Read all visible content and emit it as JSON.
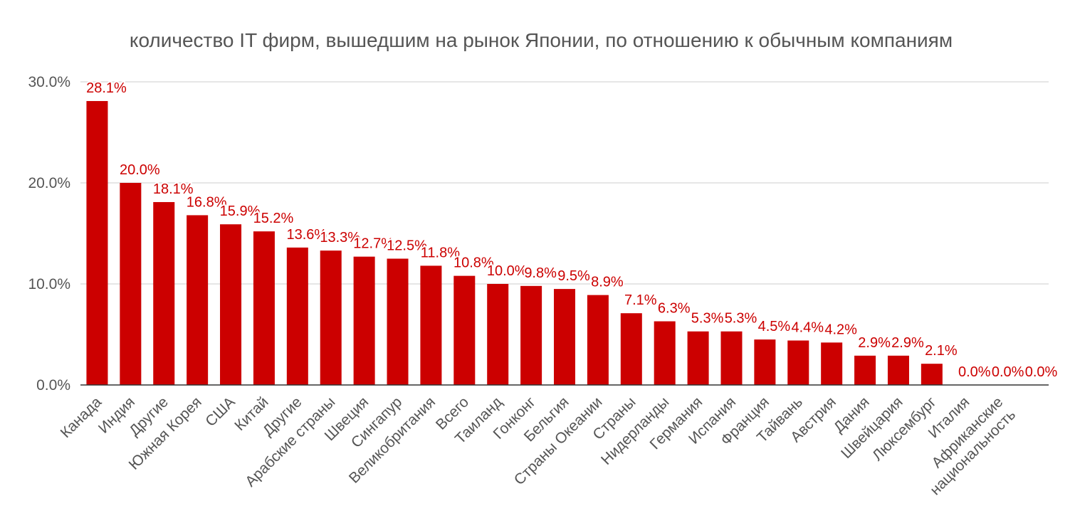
{
  "chart_data": {
    "type": "bar",
    "title": "количество IT фирм, вышедшим на рынок Японии, по отношению к обычным компаниям",
    "xlabel": "",
    "ylabel": "",
    "ylim": [
      0,
      30
    ],
    "yticks": [
      "0.0%",
      "10.0%",
      "20.0%",
      "30.0%"
    ],
    "grid": true,
    "legend": "none",
    "bar_color": "#cc0000",
    "label_color": "#cc0000",
    "categories": [
      "Канада",
      "Индия",
      "Другие",
      "Южная Корея",
      "США",
      "Китай",
      "Другие",
      "Арабские страны",
      "Швеция",
      "Сингапур",
      "Великобритания",
      "Всего",
      "Таиланд",
      "Гонконг",
      "Бельгия",
      "Страны Океании",
      "Страны",
      "Нидерланды",
      "Германия",
      "Испания",
      "Франция",
      "Тайвань",
      "Австрия",
      "Дания",
      "Швейцария",
      "Люксембург",
      "Италия",
      "Африканские\nнациональность",
      ""
    ],
    "values": [
      28.1,
      20.0,
      18.1,
      16.8,
      15.9,
      15.2,
      13.6,
      13.3,
      12.7,
      12.5,
      11.8,
      10.8,
      10.0,
      9.8,
      9.5,
      8.9,
      7.1,
      6.3,
      5.3,
      5.3,
      4.5,
      4.4,
      4.2,
      2.9,
      2.9,
      2.1,
      0.0,
      0.0,
      0.0
    ],
    "data_labels": [
      "28.1%",
      "20.0%",
      "18.1%",
      "16.8%",
      "15.9%",
      "15.2%",
      "13.6%",
      "13.3%",
      "12.7%",
      "12.5%",
      "11.8%",
      "10.8%",
      "10.0%",
      "9.8%",
      "9.5%",
      "8.9%",
      "7.1%",
      "6.3%",
      "5.3%",
      "5.3%",
      "4.5%",
      "4.4%",
      "4.2%",
      "2.9%",
      "2.9%",
      "2.1%",
      "0.0%",
      "0.0%",
      "0.0%"
    ]
  }
}
